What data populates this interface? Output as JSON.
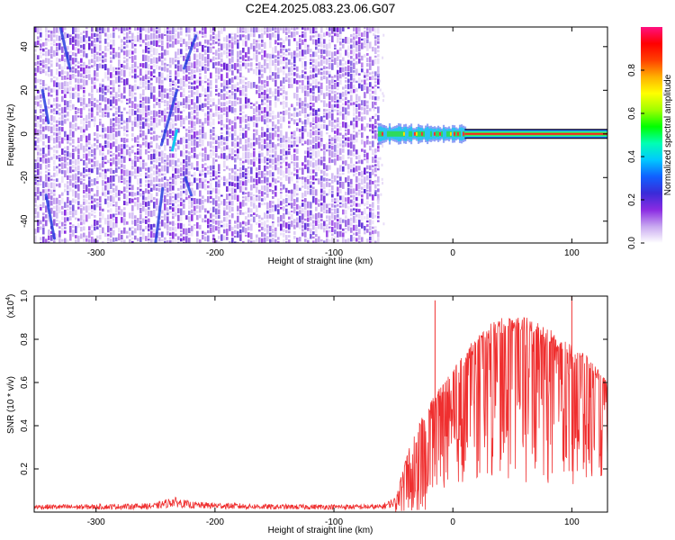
{
  "title": "C2E4.2025.083.23.06.G07",
  "chart_data": [
    {
      "type": "heatmap",
      "name": "spectrogram",
      "xlabel": "Height of straight line (km)",
      "ylabel": "Frequency (Hz)",
      "xlim": [
        -352,
        130
      ],
      "ylim": [
        -50,
        49
      ],
      "xticks": [
        -300,
        -200,
        -100,
        0,
        100
      ],
      "yticks": [
        -40,
        -20,
        0,
        20,
        40
      ],
      "noise_region_x": [
        -352,
        -63
      ],
      "carrier_region_x": [
        -63,
        130
      ],
      "carrier_frequency": 0,
      "colorbar": {
        "label": "Normalized spectral amplitude",
        "range": [
          0,
          1
        ],
        "ticks": [
          0.0,
          0.2,
          0.4,
          0.6,
          0.8
        ],
        "colors": [
          "#ffffff",
          "#c8a8f0",
          "#8a2be2",
          "#3a2bd8",
          "#1060ff",
          "#00c8ff",
          "#00ffb4",
          "#00ff00",
          "#a0ff00",
          "#ffff00",
          "#ffb000",
          "#ff4000",
          "#ff0000",
          "#ff1080"
        ]
      }
    },
    {
      "type": "line",
      "name": "snr",
      "xlabel": "Height of straight line (km)",
      "ylabel": "SNR (10 * v/v)",
      "y_multiplier": "(x10",
      "y_multiplier_exp": "4",
      "xlim": [
        -352,
        130
      ],
      "ylim": [
        0,
        1.0
      ],
      "xticks": [
        -300,
        -200,
        -100,
        0,
        100
      ],
      "yticks": [
        0.2,
        0.4,
        0.6,
        0.8,
        1.0
      ],
      "color": "#ef2f2f",
      "envelope": [
        {
          "x": -352,
          "y": 0.03
        },
        {
          "x": -300,
          "y": 0.03
        },
        {
          "x": -250,
          "y": 0.035
        },
        {
          "x": -235,
          "y": 0.06
        },
        {
          "x": -220,
          "y": 0.04
        },
        {
          "x": -150,
          "y": 0.03
        },
        {
          "x": -60,
          "y": 0.03
        },
        {
          "x": -48,
          "y": 0.06
        },
        {
          "x": -42,
          "y": 0.2
        },
        {
          "x": -35,
          "y": 0.33
        },
        {
          "x": -25,
          "y": 0.45
        },
        {
          "x": -15,
          "y": 0.55
        },
        {
          "x": -5,
          "y": 0.62
        },
        {
          "x": 5,
          "y": 0.7
        },
        {
          "x": 15,
          "y": 0.78
        },
        {
          "x": 25,
          "y": 0.84
        },
        {
          "x": 35,
          "y": 0.89
        },
        {
          "x": 50,
          "y": 0.91
        },
        {
          "x": 65,
          "y": 0.9
        },
        {
          "x": 80,
          "y": 0.86
        },
        {
          "x": 95,
          "y": 0.8
        },
        {
          "x": 110,
          "y": 0.74
        },
        {
          "x": 120,
          "y": 0.68
        },
        {
          "x": 130,
          "y": 0.6
        }
      ],
      "peaks": [
        {
          "x": -15,
          "y": 0.98
        },
        {
          "x": 100,
          "y": 1.0
        }
      ]
    }
  ]
}
